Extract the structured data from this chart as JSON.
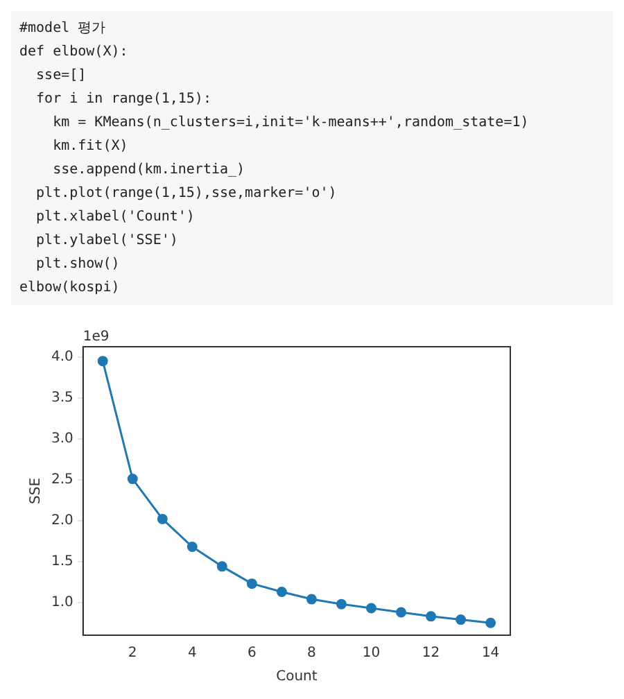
{
  "chart_data": {
    "type": "line",
    "xlabel": "Count",
    "ylabel": "SSE",
    "annotations": [
      "1e9",
      "#model 평가",
      "def elbow(X):",
      "  sse=[]",
      "  for i in range(1,15):",
      "    km = KMeans(n_clusters=i,init='k-means++',random_state=1)",
      "    km.fit(X)",
      "    sse.append(km.inertia_)",
      "  plt.plot(range(1,15),sse,marker='o')",
      "  plt.xlabel('Count')",
      "  plt.ylabel('SSE')",
      "  plt.show()",
      "elbow(kospi)"
    ],
    "x": [
      1,
      2,
      3,
      4,
      5,
      6,
      7,
      8,
      9,
      10,
      11,
      12,
      13,
      14
    ],
    "series": [
      {
        "color": "#1f77b4",
        "values": [
          3.95,
          2.51,
          2.02,
          1.68,
          1.44,
          1.23,
          1.13,
          1.04,
          0.98,
          0.93,
          0.88,
          0.83,
          0.79,
          0.75
        ]
      }
    ],
    "xlim": [
      0.34,
      14.66
    ],
    "xticks": [
      2,
      4,
      6,
      8,
      10,
      12,
      14
    ],
    "ylim": [
      0.6,
      4.125
    ],
    "yticks": [
      {
        "value": 1,
        "label": "1.0"
      },
      {
        "value": 1.5,
        "label": "1.5"
      },
      {
        "value": 2,
        "label": "2.0"
      },
      {
        "value": 2.5,
        "label": "2.5"
      },
      {
        "value": 3,
        "label": "3.0"
      },
      {
        "value": 3.5,
        "label": "3.5"
      },
      {
        "value": 4,
        "label": "4.0"
      }
    ],
    "marker": "circle",
    "grid": false,
    "legend": false
  }
}
